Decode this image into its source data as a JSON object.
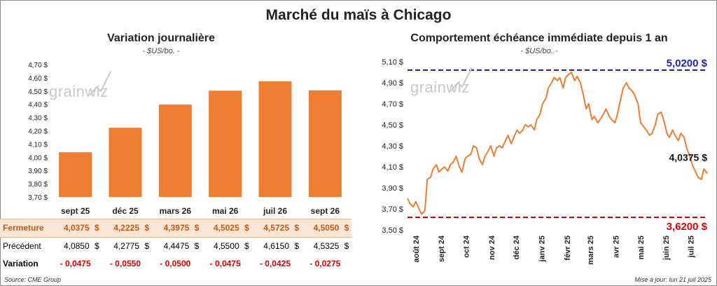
{
  "title": "Marché du maïs à Chicago",
  "left_panel": {
    "title": "Variation journalière",
    "subtitle": "- $US/bo. -"
  },
  "right_panel": {
    "title": "Comportement échéance immédiate depuis 1 an",
    "subtitle": "- $US/bo. -"
  },
  "watermark": "grainwiz",
  "table": {
    "rows": [
      {
        "label": "Fermeture",
        "values": [
          "4,0375",
          "4,2225",
          "4,3975",
          "4,5025",
          "4,5725",
          "4,5050"
        ],
        "unit": "$"
      },
      {
        "label": "Précédent",
        "values": [
          "4,0850",
          "4,2775",
          "4,4475",
          "4,5500",
          "4,6150",
          "4,5325"
        ],
        "unit": "$"
      },
      {
        "label": "Variation",
        "values": [
          "- 0,0475",
          "- 0,0550",
          "- 0,0500",
          "- 0,0475",
          "- 0,0425",
          "- 0,0275"
        ]
      }
    ]
  },
  "footer": {
    "source": "Source: CME Group",
    "updated": "Mise à jour: lun 21 juil 2025"
  },
  "colors": {
    "bar": "#ed7d31",
    "line": "#ed7d31",
    "high": "#1f1fbf",
    "low": "#e00000",
    "negative": "#e00000"
  },
  "chart_data": [
    {
      "type": "bar",
      "title": "Variation journalière",
      "subtitle": "- $US/bo. -",
      "categories": [
        "sept 25",
        "déc 25",
        "mars 26",
        "mai 26",
        "juil 26",
        "sept 26"
      ],
      "values": [
        4.0375,
        4.2225,
        4.3975,
        4.5025,
        4.5725,
        4.505
      ],
      "ylim": [
        3.7,
        4.7
      ],
      "yticks": [
        "3,70 $",
        "3,80 $",
        "3,90 $",
        "4,00 $",
        "4,10 $",
        "4,20 $",
        "4,30 $",
        "4,40 $",
        "4,50 $",
        "4,60 $",
        "4,70 $"
      ],
      "grid": false
    },
    {
      "type": "line",
      "title": "Comportement échéance immédiate depuis 1 an",
      "subtitle": "- $US/bo. -",
      "ylim": [
        3.5,
        5.1
      ],
      "yticks": [
        "3,50 $",
        "3,70 $",
        "3,90 $",
        "4,10 $",
        "4,30 $",
        "4,50 $",
        "4,70 $",
        "4,90 $",
        "5,10 $"
      ],
      "xticks": [
        "août 24",
        "sept 24",
        "oct 24",
        "nov 24",
        "déc 24",
        "janv 25",
        "févr 25",
        "mars 25",
        "avr 25",
        "mai 25",
        "juin 25",
        "juil 25"
      ],
      "series": [
        {
          "x": [
            "2024-07-22",
            "2024-07-25",
            "2024-07-29",
            "2024-08-01",
            "2024-08-05",
            "2024-08-08",
            "2024-08-12",
            "2024-08-15",
            "2024-08-19",
            "2024-08-22",
            "2024-08-26",
            "2024-08-29",
            "2024-09-02",
            "2024-09-05",
            "2024-09-09",
            "2024-09-12",
            "2024-09-16",
            "2024-09-19",
            "2024-09-23",
            "2024-09-26",
            "2024-09-30",
            "2024-10-03",
            "2024-10-07",
            "2024-10-10",
            "2024-10-14",
            "2024-10-17",
            "2024-10-21",
            "2024-10-24",
            "2024-10-28",
            "2024-10-31",
            "2024-11-04",
            "2024-11-07",
            "2024-11-11",
            "2024-11-14",
            "2024-11-18",
            "2024-11-21",
            "2024-11-25",
            "2024-11-28",
            "2024-12-02",
            "2024-12-05",
            "2024-12-09",
            "2024-12-12",
            "2024-12-16",
            "2024-12-19",
            "2024-12-23",
            "2024-12-26",
            "2024-12-30",
            "2025-01-02",
            "2025-01-06",
            "2025-01-09",
            "2025-01-13",
            "2025-01-16",
            "2025-01-20",
            "2025-01-23",
            "2025-01-27",
            "2025-01-30",
            "2025-02-03",
            "2025-02-06",
            "2025-02-10",
            "2025-02-13",
            "2025-02-17",
            "2025-02-20",
            "2025-02-24",
            "2025-02-27",
            "2025-03-03",
            "2025-03-06",
            "2025-03-10",
            "2025-03-13",
            "2025-03-17",
            "2025-03-20",
            "2025-03-24",
            "2025-03-27",
            "2025-03-31",
            "2025-04-03",
            "2025-04-07",
            "2025-04-10",
            "2025-04-14",
            "2025-04-17",
            "2025-04-21",
            "2025-04-24",
            "2025-04-28",
            "2025-05-01",
            "2025-05-05",
            "2025-05-08",
            "2025-05-12",
            "2025-05-15",
            "2025-05-19",
            "2025-05-22",
            "2025-05-26",
            "2025-05-29",
            "2025-06-02",
            "2025-06-05",
            "2025-06-09",
            "2025-06-12",
            "2025-06-16",
            "2025-06-19",
            "2025-06-23",
            "2025-06-26",
            "2025-06-30",
            "2025-07-03",
            "2025-07-07",
            "2025-07-10",
            "2025-07-14",
            "2025-07-17",
            "2025-07-21"
          ],
          "values": [
            3.8,
            3.75,
            3.72,
            3.77,
            3.7,
            3.65,
            3.68,
            3.98,
            4.0,
            4.08,
            4.12,
            4.05,
            4.08,
            4.1,
            4.06,
            4.12,
            4.15,
            4.2,
            4.1,
            4.05,
            4.18,
            4.2,
            4.22,
            4.3,
            4.28,
            4.18,
            4.12,
            4.2,
            4.25,
            4.3,
            4.2,
            4.28,
            4.3,
            4.28,
            4.35,
            4.4,
            4.32,
            4.38,
            4.45,
            4.42,
            4.45,
            4.5,
            4.48,
            4.5,
            4.45,
            4.55,
            4.6,
            4.7,
            4.75,
            4.85,
            4.9,
            4.95,
            4.92,
            4.95,
            4.85,
            4.95,
            4.98,
            5.0,
            4.92,
            4.96,
            4.9,
            4.8,
            4.65,
            4.7,
            4.55,
            4.58,
            4.52,
            4.55,
            4.6,
            4.65,
            4.58,
            4.55,
            4.52,
            4.6,
            4.75,
            4.85,
            4.9,
            4.85,
            4.82,
            4.78,
            4.7,
            4.52,
            4.48,
            4.45,
            4.4,
            4.42,
            4.5,
            4.6,
            4.62,
            4.55,
            4.42,
            4.38,
            4.45,
            4.4,
            4.35,
            4.42,
            4.38,
            4.28,
            4.2,
            4.12,
            4.05,
            4.0,
            3.98,
            4.08,
            4.0375
          ]
        }
      ],
      "reference_lines": [
        {
          "label": "5,0200 $",
          "value": 5.02,
          "color": "#1f1fbf"
        },
        {
          "label": "3,6200 $",
          "value": 3.62,
          "color": "#e00000"
        }
      ],
      "last_label": "4,0375 $",
      "grid": false
    }
  ]
}
